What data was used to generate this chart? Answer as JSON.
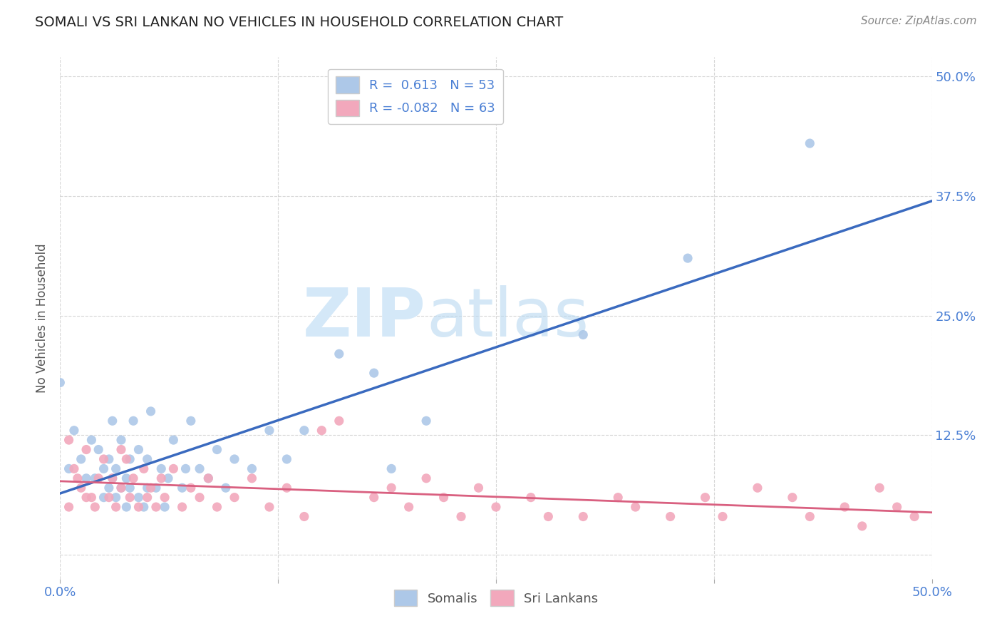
{
  "title": "SOMALI VS SRI LANKAN NO VEHICLES IN HOUSEHOLD CORRELATION CHART",
  "source": "Source: ZipAtlas.com",
  "ylabel": "No Vehicles in Household",
  "somali_R": 0.613,
  "somali_N": 53,
  "srilanka_R": -0.082,
  "srilanka_N": 63,
  "somali_color": "#adc8e8",
  "srilanka_color": "#f2a8bc",
  "somali_line_color": "#3a6abf",
  "srilanka_line_color": "#d96080",
  "background_color": "#ffffff",
  "grid_color": "#cccccc",
  "title_color": "#222222",
  "axis_label_color": "#4a7fd4",
  "watermark_color": "#d4e8f8",
  "somali_x": [
    0.005,
    0.008,
    0.012,
    0.015,
    0.018,
    0.02,
    0.022,
    0.025,
    0.025,
    0.028,
    0.028,
    0.03,
    0.03,
    0.032,
    0.032,
    0.035,
    0.035,
    0.038,
    0.038,
    0.04,
    0.04,
    0.042,
    0.045,
    0.045,
    0.048,
    0.05,
    0.05,
    0.052,
    0.055,
    0.058,
    0.06,
    0.062,
    0.065,
    0.07,
    0.072,
    0.075,
    0.08,
    0.085,
    0.09,
    0.095,
    0.1,
    0.11,
    0.12,
    0.13,
    0.14,
    0.16,
    0.18,
    0.19,
    0.21,
    0.3,
    0.36,
    0.43,
    0.0
  ],
  "somali_y": [
    0.09,
    0.13,
    0.1,
    0.08,
    0.12,
    0.08,
    0.11,
    0.06,
    0.09,
    0.07,
    0.1,
    0.08,
    0.14,
    0.06,
    0.09,
    0.07,
    0.12,
    0.05,
    0.08,
    0.07,
    0.1,
    0.14,
    0.06,
    0.11,
    0.05,
    0.07,
    0.1,
    0.15,
    0.07,
    0.09,
    0.05,
    0.08,
    0.12,
    0.07,
    0.09,
    0.14,
    0.09,
    0.08,
    0.11,
    0.07,
    0.1,
    0.09,
    0.13,
    0.1,
    0.13,
    0.21,
    0.19,
    0.09,
    0.14,
    0.23,
    0.31,
    0.43,
    0.18
  ],
  "srilanka_x": [
    0.005,
    0.008,
    0.012,
    0.015,
    0.018,
    0.02,
    0.022,
    0.025,
    0.028,
    0.03,
    0.032,
    0.035,
    0.038,
    0.04,
    0.042,
    0.045,
    0.048,
    0.05,
    0.052,
    0.055,
    0.058,
    0.06,
    0.065,
    0.07,
    0.075,
    0.08,
    0.085,
    0.09,
    0.1,
    0.11,
    0.12,
    0.13,
    0.14,
    0.15,
    0.16,
    0.18,
    0.19,
    0.2,
    0.21,
    0.22,
    0.23,
    0.24,
    0.25,
    0.27,
    0.28,
    0.3,
    0.32,
    0.33,
    0.35,
    0.37,
    0.38,
    0.4,
    0.42,
    0.43,
    0.45,
    0.46,
    0.47,
    0.48,
    0.49,
    0.005,
    0.01,
    0.015,
    0.035
  ],
  "srilanka_y": [
    0.05,
    0.09,
    0.07,
    0.11,
    0.06,
    0.05,
    0.08,
    0.1,
    0.06,
    0.08,
    0.05,
    0.07,
    0.1,
    0.06,
    0.08,
    0.05,
    0.09,
    0.06,
    0.07,
    0.05,
    0.08,
    0.06,
    0.09,
    0.05,
    0.07,
    0.06,
    0.08,
    0.05,
    0.06,
    0.08,
    0.05,
    0.07,
    0.04,
    0.13,
    0.14,
    0.06,
    0.07,
    0.05,
    0.08,
    0.06,
    0.04,
    0.07,
    0.05,
    0.06,
    0.04,
    0.04,
    0.06,
    0.05,
    0.04,
    0.06,
    0.04,
    0.07,
    0.06,
    0.04,
    0.05,
    0.03,
    0.07,
    0.05,
    0.04,
    0.12,
    0.08,
    0.06,
    0.11
  ],
  "xlim": [
    0.0,
    0.5
  ],
  "ylim": [
    -0.025,
    0.52
  ],
  "xtick_positions": [
    0.0,
    0.125,
    0.25,
    0.375,
    0.5
  ],
  "xtick_labels": [
    "0.0%",
    "",
    "",
    "",
    "50.0%"
  ],
  "ytick_positions": [
    0.0,
    0.125,
    0.25,
    0.375,
    0.5
  ],
  "ytick_labels": [
    "",
    "12.5%",
    "25.0%",
    "37.5%",
    "50.0%"
  ]
}
